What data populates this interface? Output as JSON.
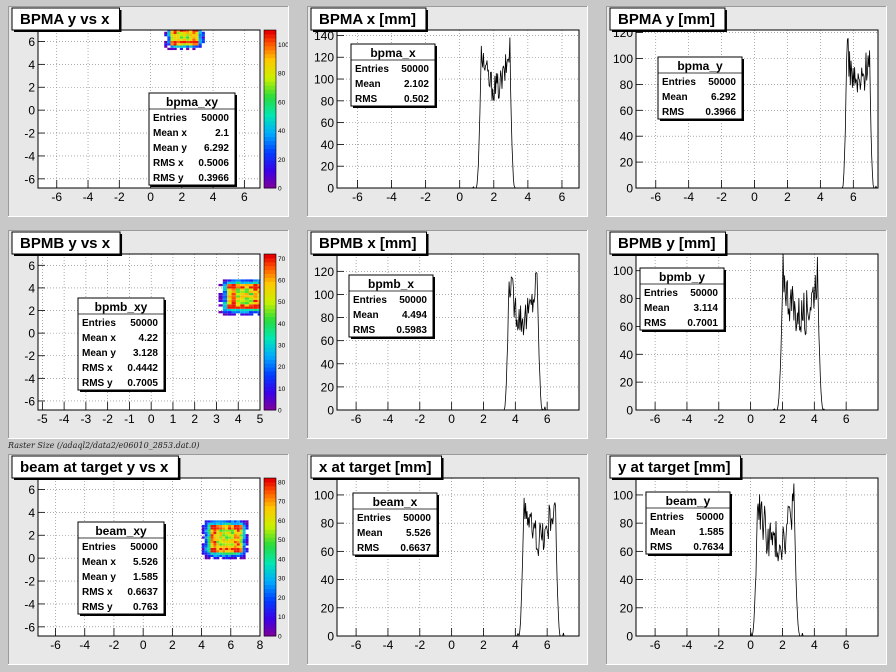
{
  "footer_text": "Raster Size (/adaql2/data2/e06010_2853.dat.0)",
  "colors": {
    "pad_bg": "#e8e8e8",
    "frame_bg": "#ffffff",
    "line": "#000000"
  },
  "chart_data": [
    {
      "id": "bpma_yx",
      "type": "heatmap",
      "title": "BPMA y vs x",
      "xlim": [
        -7.2,
        7
      ],
      "ylim": [
        -6.8,
        7
      ],
      "xticks": [
        -6,
        -4,
        -2,
        0,
        2,
        4,
        6
      ],
      "yticks": [
        -6,
        -4,
        -2,
        0,
        2,
        4,
        6
      ],
      "blob": {
        "cx": 2.1,
        "cy": 6.292,
        "sx": 0.5006,
        "sy": 0.3966
      },
      "zmax": 110,
      "zticks": [
        0,
        20,
        40,
        60,
        80,
        100
      ],
      "stats": {
        "name": "bpma_xy",
        "rows": [
          [
            "Entries",
            "50000"
          ],
          [
            "Mean x",
            "2.1"
          ],
          [
            "Mean y",
            "6.292"
          ],
          [
            "RMS x",
            "0.5006"
          ],
          [
            "RMS y",
            "0.3966"
          ]
        ]
      }
    },
    {
      "id": "bpma_x",
      "type": "line",
      "title": "BPMA x [mm]",
      "xlim": [
        -7.2,
        7
      ],
      "ylim": [
        0,
        145
      ],
      "xticks": [
        -6,
        -4,
        -2,
        0,
        2,
        4,
        6
      ],
      "yticks": [
        0,
        20,
        40,
        60,
        80,
        100,
        120,
        140
      ],
      "shape": {
        "center": 2.102,
        "half_width": 0.85,
        "edge": 0.28,
        "peak": 130,
        "dip": 92,
        "noise": 14
      },
      "stats": {
        "name": "bpma_x",
        "rows": [
          [
            "Entries",
            "50000"
          ],
          [
            "Mean",
            "2.102"
          ],
          [
            "RMS",
            "0.502"
          ]
        ]
      }
    },
    {
      "id": "bpma_y",
      "type": "line",
      "title": "BPMA y [mm]",
      "xlim": [
        -7.2,
        7.5
      ],
      "ylim": [
        0,
        122
      ],
      "xticks": [
        -6,
        -4,
        -2,
        0,
        2,
        4,
        6
      ],
      "yticks": [
        0,
        20,
        40,
        60,
        80,
        100,
        120
      ],
      "shape": {
        "center": 6.292,
        "half_width": 0.7,
        "edge": 0.25,
        "peak": 110,
        "dip": 80,
        "noise": 14
      },
      "stats": {
        "name": "bpma_y",
        "rows": [
          [
            "Entries",
            "50000"
          ],
          [
            "Mean",
            "6.292"
          ],
          [
            "RMS",
            "0.3966"
          ]
        ]
      }
    },
    {
      "id": "bpmb_yx",
      "type": "heatmap",
      "title": "BPMB y vs x",
      "xlim": [
        -5.2,
        5
      ],
      "ylim": [
        -6.8,
        7
      ],
      "xticks": [
        -5,
        -4,
        -3,
        -2,
        -1,
        0,
        1,
        2,
        3,
        4,
        5
      ],
      "yticks": [
        -6,
        -4,
        -2,
        0,
        2,
        4,
        6
      ],
      "blob": {
        "cx": 4.22,
        "cy": 3.128,
        "sx": 0.4442,
        "sy": 0.7005
      },
      "zmax": 72,
      "zticks": [
        0,
        10,
        20,
        30,
        40,
        50,
        60,
        70
      ],
      "stats": {
        "name": "bpmb_xy",
        "rows": [
          [
            "Entries",
            "50000"
          ],
          [
            "Mean x",
            "4.22"
          ],
          [
            "Mean y",
            "3.128"
          ],
          [
            "RMS x",
            "0.4442"
          ],
          [
            "RMS y",
            "0.7005"
          ]
        ]
      }
    },
    {
      "id": "bpmb_x",
      "type": "line",
      "title": "BPMB x [mm]",
      "xlim": [
        -7.2,
        8
      ],
      "ylim": [
        0,
        135
      ],
      "xticks": [
        -6,
        -4,
        -2,
        0,
        2,
        4,
        6
      ],
      "yticks": [
        0,
        20,
        40,
        60,
        80,
        100,
        120
      ],
      "shape": {
        "center": 4.494,
        "half_width": 0.9,
        "edge": 0.3,
        "peak": 118,
        "dip": 80,
        "noise": 16
      },
      "stats": {
        "name": "bpmb_x",
        "rows": [
          [
            "Entries",
            "50000"
          ],
          [
            "Mean",
            "4.494"
          ],
          [
            "RMS",
            "0.5983"
          ]
        ]
      }
    },
    {
      "id": "bpmb_y",
      "type": "line",
      "title": "BPMB y [mm]",
      "xlim": [
        -7.2,
        8
      ],
      "ylim": [
        0,
        112
      ],
      "xticks": [
        -6,
        -4,
        -2,
        0,
        2,
        4,
        6
      ],
      "yticks": [
        0,
        20,
        40,
        60,
        80,
        100
      ],
      "shape": {
        "center": 3.114,
        "half_width": 1.1,
        "edge": 0.35,
        "peak": 100,
        "dip": 68,
        "noise": 16
      },
      "stats": {
        "name": "bpmb_y",
        "rows": [
          [
            "Entries",
            "50000"
          ],
          [
            "Mean",
            "3.114"
          ],
          [
            "RMS",
            "0.7001"
          ]
        ]
      }
    },
    {
      "id": "beam_yx",
      "type": "heatmap",
      "title": "beam at target y vs x",
      "xlim": [
        -7.2,
        8
      ],
      "ylim": [
        -6.8,
        7
      ],
      "xticks": [
        -6,
        -4,
        -2,
        0,
        2,
        4,
        6,
        8
      ],
      "yticks": [
        -6,
        -4,
        -2,
        0,
        2,
        4,
        6
      ],
      "blob": {
        "cx": 5.526,
        "cy": 1.585,
        "sx": 0.6637,
        "sy": 0.763
      },
      "zmax": 82,
      "zticks": [
        0,
        10,
        20,
        30,
        40,
        50,
        60,
        70,
        80
      ],
      "stats": {
        "name": "beam_xy",
        "rows": [
          [
            "Entries",
            "50000"
          ],
          [
            "Mean x",
            "5.526"
          ],
          [
            "Mean y",
            "1.585"
          ],
          [
            "RMS x",
            "0.6637"
          ],
          [
            "RMS y",
            "0.763"
          ]
        ]
      }
    },
    {
      "id": "beam_x",
      "type": "line",
      "title": "x at target [mm]",
      "xlim": [
        -7.2,
        8
      ],
      "ylim": [
        0,
        112
      ],
      "xticks": [
        -6,
        -4,
        -2,
        0,
        2,
        4,
        6
      ],
      "yticks": [
        0,
        20,
        40,
        60,
        80,
        100
      ],
      "shape": {
        "center": 5.526,
        "half_width": 1.0,
        "edge": 0.3,
        "peak": 100,
        "dip": 70,
        "noise": 14
      },
      "stats": {
        "name": "beam_x",
        "rows": [
          [
            "Entries",
            "50000"
          ],
          [
            "Mean",
            "5.526"
          ],
          [
            "RMS",
            "0.6637"
          ]
        ]
      }
    },
    {
      "id": "beam_y",
      "type": "line",
      "title": "y at target [mm]",
      "xlim": [
        -7.2,
        8
      ],
      "ylim": [
        0,
        112
      ],
      "xticks": [
        -6,
        -4,
        -2,
        0,
        2,
        4,
        6
      ],
      "yticks": [
        0,
        20,
        40,
        60,
        80,
        100
      ],
      "shape": {
        "center": 1.585,
        "half_width": 1.15,
        "edge": 0.35,
        "peak": 100,
        "dip": 66,
        "noise": 16
      },
      "stats": {
        "name": "beam_y",
        "rows": [
          [
            "Entries",
            "50000"
          ],
          [
            "Mean",
            "1.585"
          ],
          [
            "RMS",
            "0.7634"
          ]
        ]
      }
    }
  ]
}
